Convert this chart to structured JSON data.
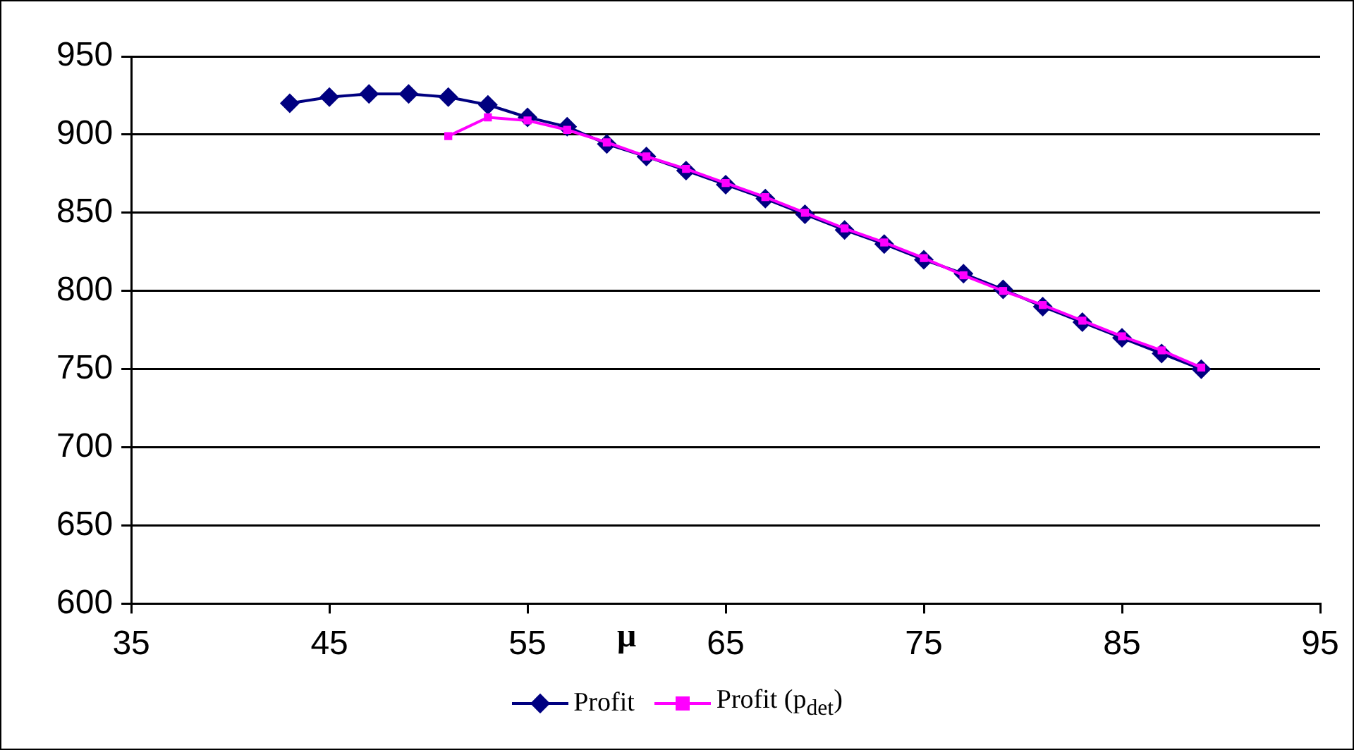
{
  "chart_data": {
    "type": "line",
    "xlabel": "μ",
    "xlim": [
      35,
      95
    ],
    "xticks": [
      35,
      45,
      55,
      65,
      75,
      85,
      95
    ],
    "ylim": [
      600,
      950
    ],
    "yticks": [
      600,
      650,
      700,
      750,
      800,
      850,
      900,
      950
    ],
    "grid": "y",
    "legend": "bottom",
    "line_style": "solid",
    "series": [
      {
        "name": "Profit",
        "color": "#000080",
        "marker": "diamond",
        "x": [
          43,
          45,
          47,
          49,
          51,
          53,
          55,
          57,
          59,
          61,
          63,
          65,
          67,
          69,
          71,
          73,
          75,
          77,
          79,
          81,
          83,
          85,
          87,
          89
        ],
        "values": [
          920,
          924,
          926,
          926,
          924,
          919,
          911,
          905,
          894,
          886,
          877,
          868,
          859,
          849,
          839,
          830,
          820,
          811,
          801,
          790,
          780,
          770,
          760,
          750
        ]
      },
      {
        "name": "Profit (p$_{det}$)",
        "color": "#ff00ff",
        "marker": "square",
        "x": [
          51,
          53,
          55,
          57,
          59,
          61,
          63,
          65,
          67,
          69,
          71,
          73,
          75,
          77,
          79,
          81,
          83,
          85,
          87,
          89
        ],
        "values": [
          899,
          911,
          909,
          903,
          895,
          886,
          878,
          869,
          860,
          850,
          840,
          831,
          821,
          810,
          800,
          791,
          781,
          771,
          762,
          751
        ]
      }
    ]
  }
}
